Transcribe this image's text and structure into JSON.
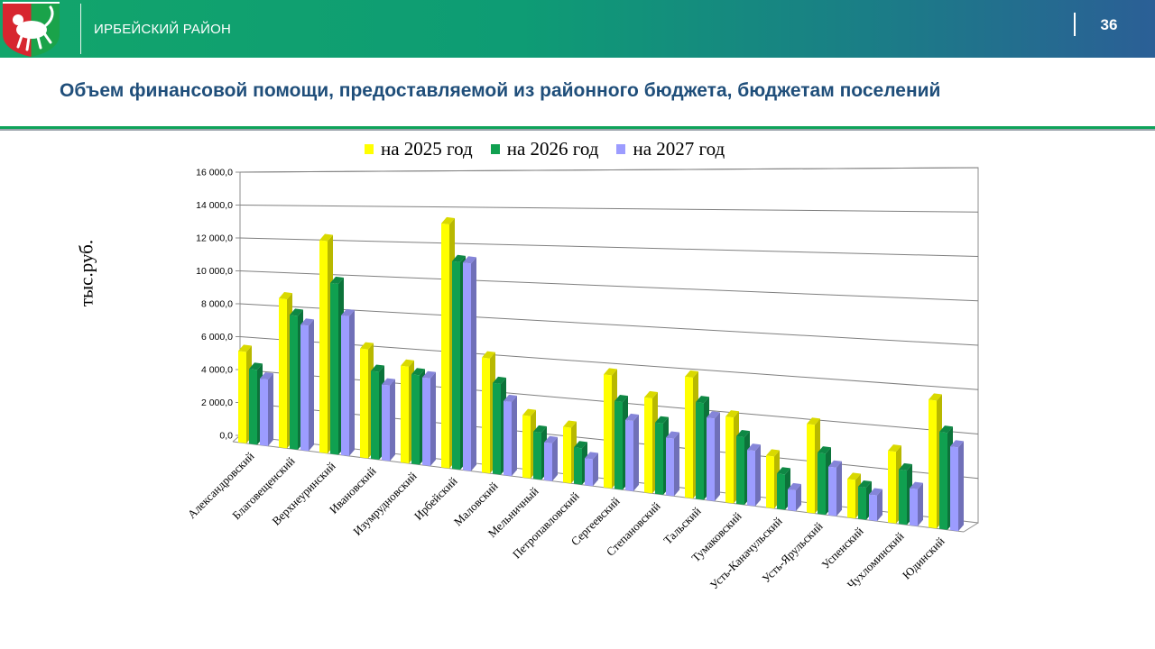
{
  "header": {
    "district": "ИРБЕЙСКИЙ РАЙОН",
    "page_number": "36"
  },
  "title": "Объем финансовой помощи, предоставляемой из районного бюджета, бюджетам поселений",
  "colors": {
    "series_2025": "#ffff00",
    "series_2026": "#10a050",
    "series_2027": "#9c9cff",
    "header_start": "#12a56b",
    "header_end": "#2b5f96",
    "title": "#1f4e7a"
  },
  "chart_data": {
    "type": "bar",
    "title": "",
    "xlabel": "",
    "ylabel": "тыс.руб.",
    "ylim": [
      0,
      16000
    ],
    "yticks": [
      "0,0",
      "2 000,0",
      "4 000,0",
      "6 000,0",
      "8 000,0",
      "10 000,0",
      "12 000,0",
      "14 000,0",
      "16 000,0"
    ],
    "legend_position": "top",
    "categories": [
      "Александровский",
      "Благовещенский",
      "Верхнеуринский",
      "Ивановский",
      "Изумрудновский",
      "Ирбейский",
      "Маловский",
      "Мельничный",
      "Петропавловский",
      "Сергеевский",
      "Степановский",
      "Тальский",
      "Тумаковский",
      "Усть-Каначульский",
      "Усть-Ярульский",
      "Успенский",
      "Чухломинский",
      "Юдинский"
    ],
    "series": [
      {
        "name": "на 2025 год",
        "values": [
          5500,
          8800,
          12300,
          6200,
          5400,
          13400,
          6200,
          3300,
          2900,
          5800,
          4800,
          6000,
          4200,
          2500,
          4200,
          1800,
          3300,
          5800
        ]
      },
      {
        "name": "на 2026 год",
        "values": [
          4500,
          7900,
          9900,
          5000,
          5000,
          11400,
          4900,
          2500,
          1900,
          4500,
          3600,
          4800,
          3300,
          1700,
          2900,
          1500,
          2500,
          4400
        ]
      },
      {
        "name": "на 2027 год",
        "values": [
          4000,
          7400,
          8100,
          4300,
          4900,
          11400,
          4000,
          2000,
          1400,
          3600,
          2900,
          4100,
          2700,
          1000,
          2300,
          1200,
          1700,
          3800
        ]
      }
    ]
  }
}
